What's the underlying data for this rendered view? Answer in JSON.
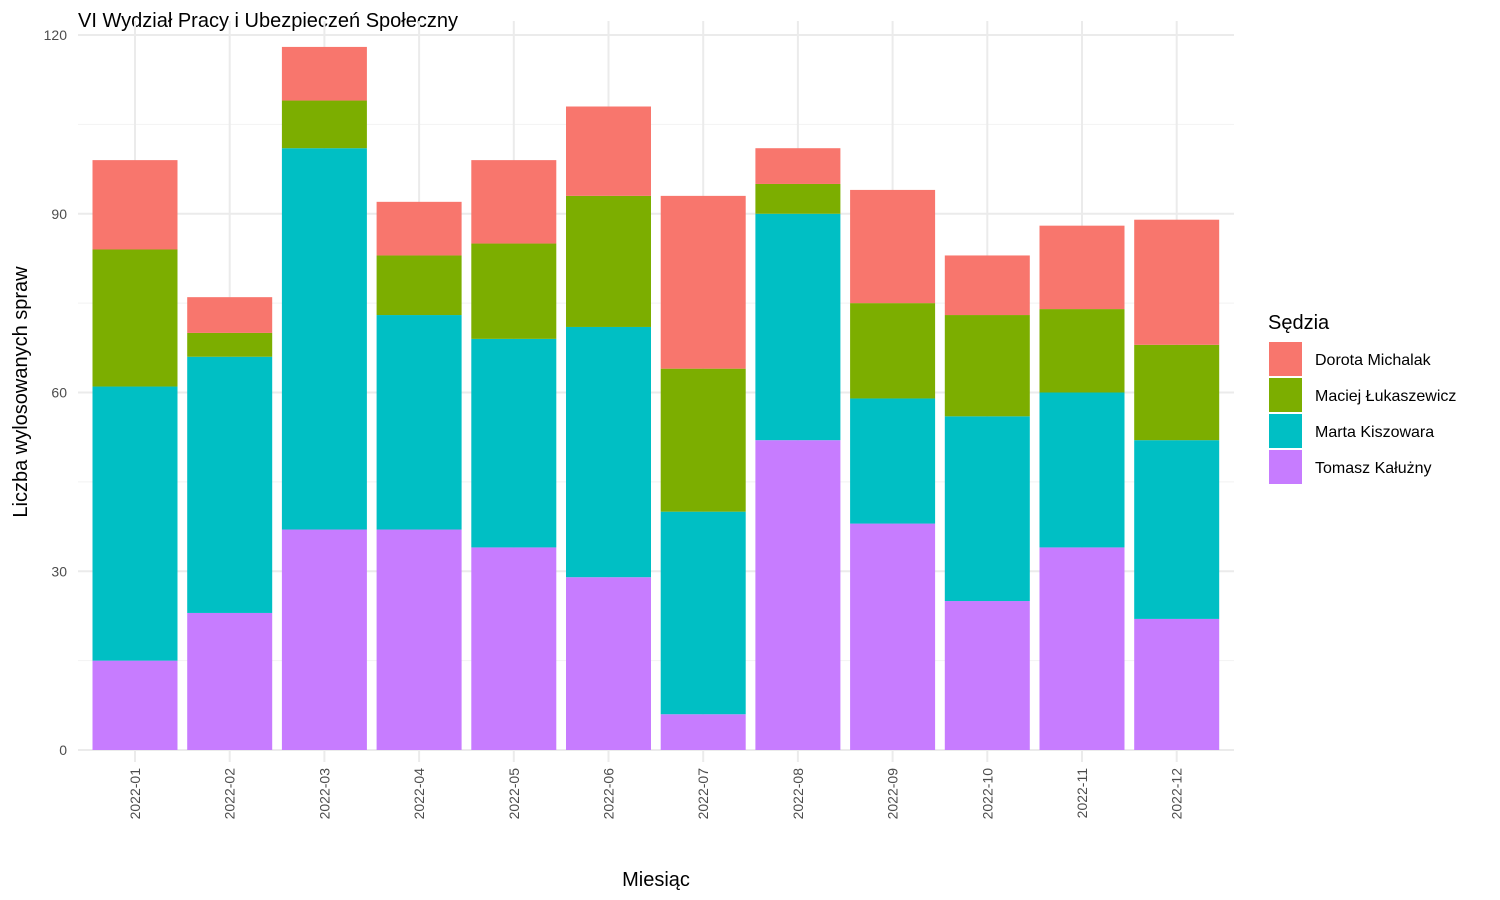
{
  "chart_data": {
    "type": "bar",
    "stacked": true,
    "title": "VI Wydział Pracy i Ubezpieczeń Społeczny",
    "xlabel": "Miesiąc",
    "ylabel": "Liczba wylosowanych spraw",
    "ylim": [
      0,
      120
    ],
    "yticks": [
      0,
      30,
      60,
      90,
      120
    ],
    "grid": true,
    "legend_title": "Sędzia",
    "legend_position": "right",
    "categories": [
      "2022-01",
      "2022-02",
      "2022-03",
      "2022-04",
      "2022-05",
      "2022-06",
      "2022-07",
      "2022-08",
      "2022-09",
      "2022-10",
      "2022-11",
      "2022-12"
    ],
    "series": [
      {
        "name": "Tomasz Kałużny",
        "color": "#C77CFF",
        "values": [
          15,
          23,
          37,
          37,
          34,
          29,
          6,
          52,
          38,
          25,
          34,
          22
        ]
      },
      {
        "name": "Marta Kiszowara",
        "color": "#00BFC4",
        "values": [
          46,
          43,
          64,
          36,
          35,
          42,
          34,
          38,
          21,
          31,
          26,
          30
        ]
      },
      {
        "name": "Maciej Łukaszewicz",
        "color": "#7CAE00",
        "values": [
          23,
          4,
          8,
          10,
          16,
          22,
          24,
          5,
          16,
          17,
          14,
          16
        ]
      },
      {
        "name": "Dorota Michalak",
        "color": "#F8766D",
        "values": [
          15,
          6,
          9,
          9,
          14,
          15,
          29,
          6,
          19,
          10,
          14,
          21
        ]
      }
    ],
    "legend_order": [
      "Dorota Michalak",
      "Maciej Łukaszewicz",
      "Marta Kiszowara",
      "Tomasz Kałużny"
    ]
  }
}
